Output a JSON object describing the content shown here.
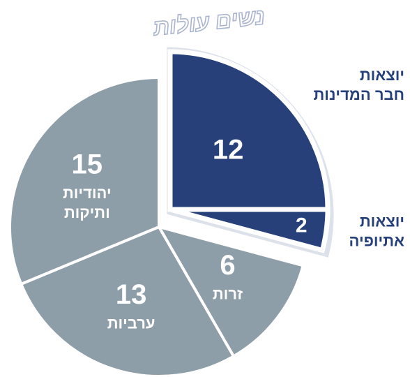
{
  "chart_data": {
    "type": "pie",
    "categories": [
      [
        "יוצאות",
        "חבר המדינות"
      ],
      [
        "יוצאות",
        "אתיופיה"
      ],
      [
        "זרות"
      ],
      [
        "ערביות"
      ],
      [
        "יהודיות",
        "ותיקות"
      ]
    ],
    "values": [
      12,
      2,
      6,
      13,
      15
    ],
    "colors": [
      "#27407a",
      "#27407a",
      "#8e9ea8",
      "#8e9ea8",
      "#8e9ea8"
    ],
    "highlight": {
      "label": "נשים עולות",
      "indices": [
        0,
        1
      ],
      "color": "#dde1ea"
    }
  }
}
